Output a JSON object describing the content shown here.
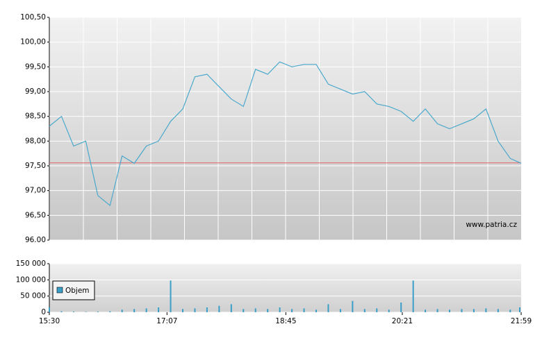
{
  "chart_data": [
    {
      "type": "line",
      "xlim": [
        "15:30",
        "21:59"
      ],
      "ylim": [
        96,
        100.5
      ],
      "yticks": [
        {
          "value": 96,
          "label": "96.00"
        },
        {
          "value": 96.5,
          "label": "96,50"
        },
        {
          "value": 97,
          "label": "97,00"
        },
        {
          "value": 97.5,
          "label": "97,50"
        },
        {
          "value": 98,
          "label": "98,00"
        },
        {
          "value": 98.5,
          "label": "98,50"
        },
        {
          "value": 99,
          "label": "99,00"
        },
        {
          "value": 99.5,
          "label": "99,50"
        },
        {
          "value": 100,
          "label": "100,00"
        },
        {
          "value": 100.5,
          "label": "100,50"
        }
      ],
      "grid": true,
      "color": "#4aa8cc",
      "x": [
        "15:30",
        "15:40",
        "15:50",
        "16:00",
        "16:10",
        "16:20",
        "16:30",
        "16:40",
        "16:50",
        "17:00",
        "17:10",
        "17:20",
        "17:30",
        "17:40",
        "17:50",
        "18:00",
        "18:10",
        "18:20",
        "18:30",
        "18:40",
        "18:50",
        "19:00",
        "19:10",
        "19:20",
        "19:30",
        "19:40",
        "19:50",
        "20:00",
        "20:10",
        "20:20",
        "20:30",
        "20:40",
        "20:50",
        "21:00",
        "21:10",
        "21:20",
        "21:30",
        "21:40",
        "21:50",
        "21:59"
      ],
      "values": [
        98.3,
        98.5,
        97.9,
        98.0,
        96.9,
        96.7,
        97.7,
        97.55,
        97.9,
        98.0,
        98.4,
        98.65,
        99.3,
        99.35,
        99.1,
        98.85,
        98.7,
        99.45,
        99.35,
        99.6,
        99.5,
        99.55,
        99.55,
        99.15,
        99.05,
        98.95,
        99.0,
        98.75,
        98.7,
        98.6,
        98.4,
        98.65,
        98.35,
        98.25,
        98.35,
        98.45,
        98.65,
        98.0,
        97.65,
        97.55
      ],
      "reference_line": {
        "value": 97.56,
        "color": "#e06060"
      },
      "annotation": "www.patria.cz"
    },
    {
      "type": "bar",
      "xlim": [
        "15:30",
        "21:59"
      ],
      "xticks": [
        "15:30",
        "17:07",
        "18:45",
        "20:21",
        "21:59"
      ],
      "ylim": [
        0,
        150000
      ],
      "yticks": [
        0,
        {
          "value": 50000,
          "label": "50 000"
        },
        {
          "value": 100000,
          "label": "100 000"
        },
        {
          "value": 150000,
          "label": "150 000"
        }
      ],
      "grid": true,
      "legend": "upper left",
      "x": [
        "15:30",
        "15:40",
        "15:50",
        "16:00",
        "16:10",
        "16:20",
        "16:30",
        "16:40",
        "16:50",
        "17:00",
        "17:10",
        "17:20",
        "17:30",
        "17:40",
        "17:50",
        "18:00",
        "18:10",
        "18:20",
        "18:30",
        "18:40",
        "18:50",
        "19:00",
        "19:10",
        "19:20",
        "19:30",
        "19:40",
        "19:50",
        "20:00",
        "20:10",
        "20:20",
        "20:30",
        "20:40",
        "20:50",
        "21:00",
        "21:10",
        "21:20",
        "21:30",
        "21:40",
        "21:50",
        "21:59"
      ],
      "series": [
        {
          "name": "Objem",
          "color": "#3a9fc8",
          "values": [
            15000,
            3000,
            2000,
            1000,
            2000,
            3000,
            8000,
            10000,
            12000,
            15000,
            98000,
            10000,
            12000,
            15000,
            20000,
            25000,
            10000,
            12000,
            10000,
            15000,
            10000,
            12000,
            8000,
            25000,
            10000,
            35000,
            10000,
            12000,
            8000,
            30000,
            98000,
            8000,
            10000,
            8000,
            10000,
            10000,
            12000,
            10000,
            8000,
            15000
          ]
        }
      ]
    }
  ]
}
